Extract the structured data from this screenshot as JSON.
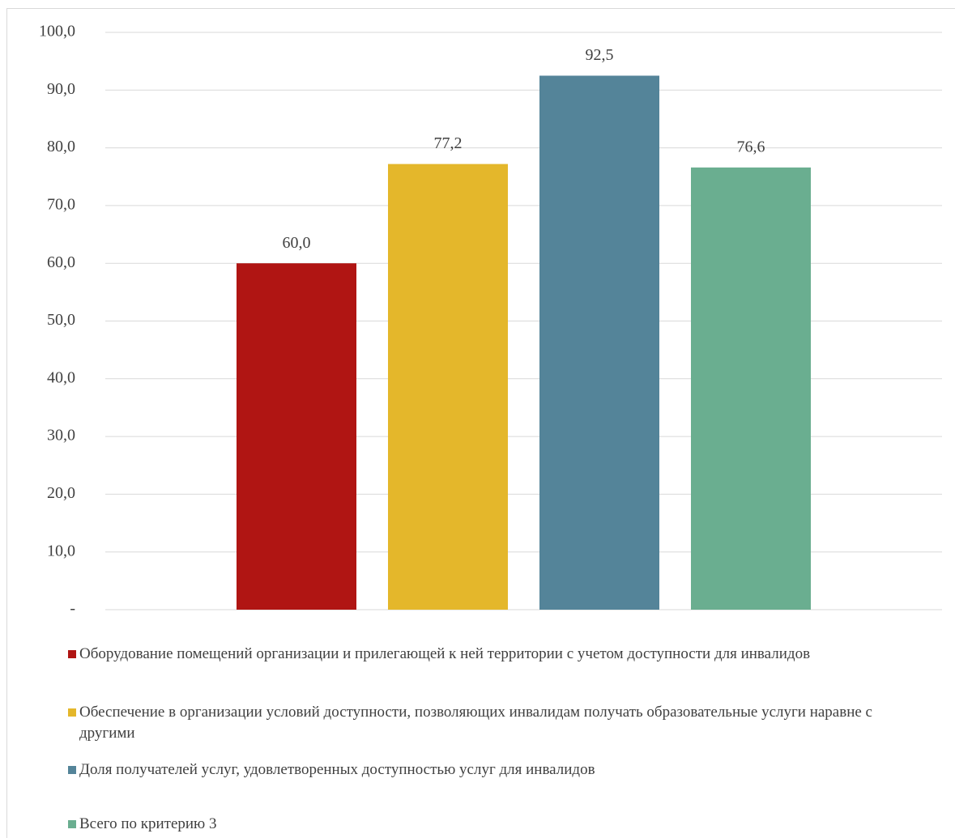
{
  "chart_data": {
    "type": "bar",
    "categories": [
      null
    ],
    "series": [
      {
        "name": "Оборудование помещений организации и прилегающей к ней территории с учетом доступности для инвалидов",
        "color": "#b01513",
        "values": [
          60.0
        ],
        "value_labels": [
          "60,0"
        ]
      },
      {
        "name": "Обеспечение в организации условий доступности, позволяющих инвалидам получать образовательные услуги наравне с другими",
        "color": "#e4b72b",
        "values": [
          77.2
        ],
        "value_labels": [
          "77,2"
        ]
      },
      {
        "name": "Доля получателей услуг, удовлетворенных доступностью услуг для инвалидов",
        "color": "#548499",
        "values": [
          92.5
        ],
        "value_labels": [
          "92,5"
        ]
      },
      {
        "name": "Всего по критерию 3",
        "color": "#6aae90",
        "values": [
          76.6
        ],
        "value_labels": [
          "76,6"
        ]
      }
    ],
    "ylim": [
      0,
      100
    ],
    "yticks": [
      {
        "value": 0,
        "label": "-"
      },
      {
        "value": 10,
        "label": "10,0"
      },
      {
        "value": 20,
        "label": "20,0"
      },
      {
        "value": 30,
        "label": "30,0"
      },
      {
        "value": 40,
        "label": "40,0"
      },
      {
        "value": 50,
        "label": "50,0"
      },
      {
        "value": 60,
        "label": "60,0"
      },
      {
        "value": 70,
        "label": "70,0"
      },
      {
        "value": 80,
        "label": "80,0"
      },
      {
        "value": 90,
        "label": "90,0"
      },
      {
        "value": 100,
        "label": "100,0"
      }
    ],
    "grid": true,
    "legend": "bottom"
  }
}
